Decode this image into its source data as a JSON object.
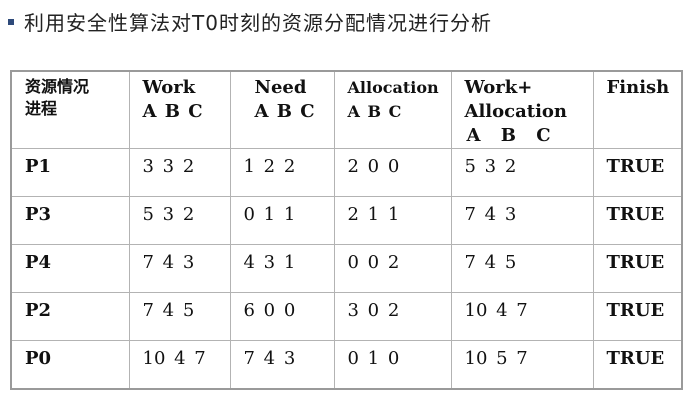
{
  "slide": {
    "title": "利用安全性算法对T0时刻的资源分配情况进行分析",
    "bullet_color": "#2e4a7a"
  },
  "table": {
    "headers": {
      "resource_line1": "资源情况",
      "resource_line2": "进程",
      "work_line1": "Work",
      "work_line2": "A B C",
      "need_line1": "Need",
      "need_line2": "A B C",
      "allocation_line1": "Allocation",
      "allocation_line2": "A B C",
      "work_alloc_line1": "Work+",
      "work_alloc_line2": "Allocation",
      "work_alloc_line3": "A B C",
      "finish": "Finish"
    },
    "rows": [
      {
        "process": "P1",
        "work": "3 3 2",
        "need": "1 2 2",
        "allocation": "2 0 0",
        "work_allocation": "5 3 2",
        "finish": "TRUE"
      },
      {
        "process": "P3",
        "work": "5 3 2",
        "need": "0 1 1",
        "allocation": "2 1 1",
        "work_allocation": "7 4 3",
        "finish": "TRUE"
      },
      {
        "process": "P4",
        "work": "7 4 3",
        "need": "4 3 1",
        "allocation": "0 0 2",
        "work_allocation": "7 4 5",
        "finish": "TRUE"
      },
      {
        "process": "P2",
        "work": "7 4 5",
        "need": "6 0 0",
        "allocation": "3 0 2",
        "work_allocation": "10 4 7",
        "finish": "TRUE"
      },
      {
        "process": "P0",
        "work": "10 4 7",
        "need": "7 4 3",
        "allocation": "0 1 0",
        "work_allocation": "10 5 7",
        "finish": "TRUE"
      }
    ]
  }
}
